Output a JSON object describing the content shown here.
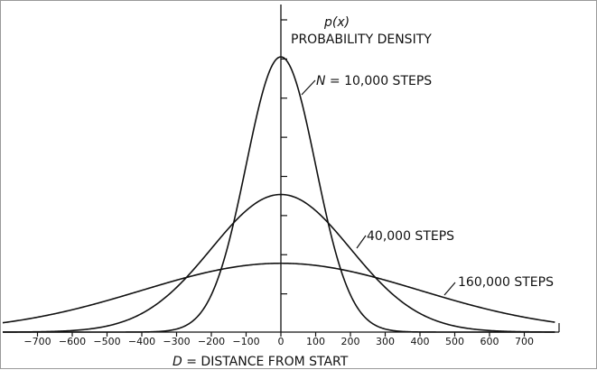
{
  "chart_data": {
    "type": "line",
    "title": "",
    "ylabel_symbol": "p(x)",
    "ylabel": "PROBABILITY DENSITY",
    "xlabel": "D = DISTANCE FROM START",
    "xlim": [
      -800,
      800
    ],
    "x_ticks": [
      -700,
      -600,
      -500,
      -400,
      -300,
      -200,
      -100,
      0,
      100,
      200,
      300,
      400,
      500,
      600,
      700
    ],
    "y_tick_count": 8,
    "grid": false,
    "series": [
      {
        "name": "N = 10,000 STEPS",
        "label_prefix": "N",
        "label_rest": " = 10,000 STEPS",
        "sigma": 100,
        "peak": 1.0
      },
      {
        "name": "40,000 STEPS",
        "sigma": 200,
        "peak": 0.5
      },
      {
        "name": "160,000 STEPS",
        "sigma": 400,
        "peak": 0.25
      }
    ]
  }
}
